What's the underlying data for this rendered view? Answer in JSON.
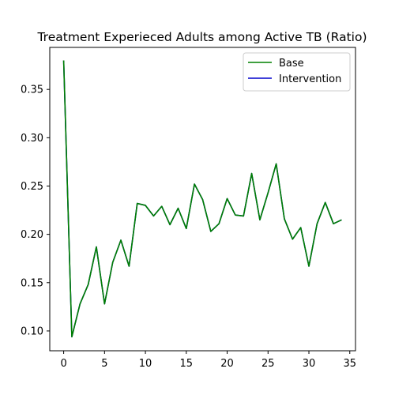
{
  "chart_data": {
    "type": "line",
    "title": "Treatment Experieced Adults among Active TB (Ratio)",
    "xlabel": "",
    "ylabel": "",
    "xlim": [
      -1.7,
      35.7
    ],
    "ylim": [
      0.0795,
      0.3935
    ],
    "x_ticks": [
      0,
      5,
      10,
      15,
      20,
      25,
      30,
      35
    ],
    "y_ticks": [
      0.1,
      0.15,
      0.2,
      0.25,
      0.3,
      0.35
    ],
    "y_tick_labels": [
      "0.10",
      "0.15",
      "0.20",
      "0.25",
      "0.30",
      "0.35"
    ],
    "grid": false,
    "legend_position": "top-right",
    "x": [
      0,
      1,
      2,
      3,
      4,
      5,
      6,
      7,
      8,
      9,
      10,
      11,
      12,
      13,
      14,
      15,
      16,
      17,
      18,
      19,
      20,
      21,
      22,
      23,
      24,
      25,
      26,
      27,
      28,
      29,
      30,
      31,
      32,
      33,
      34
    ],
    "series": [
      {
        "name": "Base",
        "color": "#008000",
        "values": [
          0.38,
          0.094,
          0.128,
          0.148,
          0.187,
          0.128,
          0.171,
          0.194,
          0.167,
          0.232,
          0.23,
          0.219,
          0.229,
          0.21,
          0.227,
          0.206,
          0.252,
          0.236,
          0.203,
          0.211,
          0.237,
          0.22,
          0.219,
          0.263,
          0.215,
          0.243,
          0.273,
          0.216,
          0.195,
          0.207,
          0.167,
          0.211,
          0.233,
          0.211,
          0.215
        ]
      },
      {
        "name": "Intervention",
        "color": "#0000cc",
        "values": [
          0.38,
          0.094,
          0.128,
          0.148,
          0.187,
          0.128,
          0.171,
          0.194,
          0.167,
          0.232,
          0.23,
          0.219,
          0.229,
          0.21,
          0.227,
          0.206,
          0.252,
          0.236,
          0.203,
          0.211,
          0.237,
          0.22,
          0.219,
          0.263,
          0.215,
          0.243,
          0.273,
          0.216,
          0.195,
          0.207,
          0.167,
          0.211,
          0.233,
          0.211,
          0.215
        ]
      }
    ]
  }
}
